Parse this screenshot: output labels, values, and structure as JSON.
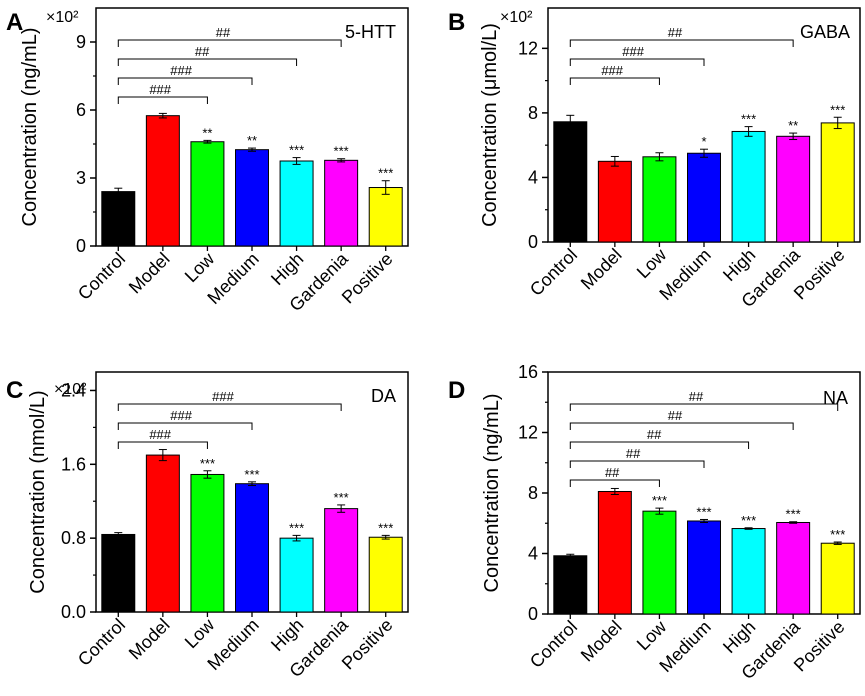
{
  "chart_data": [
    {
      "type": "bar",
      "letter": "A",
      "analyte": "5-HTT",
      "ylabel": "Concentration (ng/mL)",
      "sci_label": "×10²",
      "ylim": [
        0,
        10.5
      ],
      "yticks": [
        0,
        3,
        6,
        9
      ],
      "categories": [
        "Control",
        "Model",
        "Low",
        "Medium",
        "High",
        "Gardenia",
        "Positive"
      ],
      "values": [
        2.4,
        5.75,
        4.6,
        4.25,
        3.75,
        3.78,
        2.58
      ],
      "errors": [
        0.15,
        0.1,
        0.06,
        0.07,
        0.15,
        0.07,
        0.3
      ],
      "significance": [
        "",
        "",
        "**",
        "**",
        "***",
        "***",
        "***"
      ],
      "comparisons": [
        {
          "from": 0,
          "to": 2,
          "label": "###"
        },
        {
          "from": 0,
          "to": 3,
          "label": "###"
        },
        {
          "from": 0,
          "to": 4,
          "label": "##"
        },
        {
          "from": 0,
          "to": 5,
          "label": "##"
        }
      ]
    },
    {
      "type": "bar",
      "letter": "B",
      "analyte": "GABA",
      "ylabel": "Concentration (μmol/L)",
      "sci_label": "×10²",
      "ylim": [
        0,
        14.5
      ],
      "yticks": [
        0,
        4,
        8,
        12
      ],
      "categories": [
        "Control",
        "Model",
        "Low",
        "Medium",
        "High",
        "Gardenia",
        "Positive"
      ],
      "values": [
        7.45,
        5.0,
        5.28,
        5.5,
        6.85,
        6.55,
        7.38
      ],
      "errors": [
        0.4,
        0.3,
        0.25,
        0.25,
        0.3,
        0.2,
        0.35
      ],
      "significance": [
        "",
        "",
        "",
        "*",
        "***",
        "**",
        "***"
      ],
      "comparisons": [
        {
          "from": 0,
          "to": 2,
          "label": "###"
        },
        {
          "from": 0,
          "to": 3,
          "label": "###"
        },
        {
          "from": 0,
          "to": 5,
          "label": "##"
        }
      ]
    },
    {
      "type": "bar",
      "letter": "C",
      "analyte": "DA",
      "ylabel": "Concentration (nmol/L)",
      "sci_label": "×10²",
      "ylim": [
        0,
        2.6
      ],
      "yticks": [
        0.0,
        0.8,
        1.6,
        2.4
      ],
      "tick_format": "fixed1",
      "categories": [
        "Control",
        "Model",
        "Low",
        "Medium",
        "High",
        "Gardenia",
        "Positive"
      ],
      "values": [
        0.84,
        1.7,
        1.49,
        1.39,
        0.8,
        1.12,
        0.81
      ],
      "errors": [
        0.02,
        0.06,
        0.04,
        0.02,
        0.03,
        0.04,
        0.02
      ],
      "significance": [
        "",
        "",
        "***",
        "***",
        "***",
        "***",
        "***"
      ],
      "comparisons": [
        {
          "from": 0,
          "to": 2,
          "label": "###"
        },
        {
          "from": 0,
          "to": 3,
          "label": "###"
        },
        {
          "from": 0,
          "to": 5,
          "label": "###"
        }
      ]
    },
    {
      "type": "bar",
      "letter": "D",
      "analyte": "NA",
      "ylabel": "Concentration  (ng/mL)",
      "sci_label": "",
      "ylim": [
        0,
        16
      ],
      "yticks": [
        0,
        4,
        8,
        12,
        16
      ],
      "categories": [
        "Control",
        "Model",
        "Low",
        "Medium",
        "High",
        "Gardenia",
        "Positive"
      ],
      "values": [
        3.85,
        8.1,
        6.8,
        6.15,
        5.65,
        6.05,
        4.68
      ],
      "errors": [
        0.1,
        0.2,
        0.2,
        0.1,
        0.05,
        0.05,
        0.08
      ],
      "significance": [
        "",
        "",
        "***",
        "***",
        "***",
        "***",
        "***"
      ],
      "comparisons": [
        {
          "from": 0,
          "to": 2,
          "label": "##"
        },
        {
          "from": 0,
          "to": 3,
          "label": "##"
        },
        {
          "from": 0,
          "to": 4,
          "label": "##"
        },
        {
          "from": 0,
          "to": 5,
          "label": "##"
        },
        {
          "from": 0,
          "to": 6,
          "label": "##"
        }
      ]
    }
  ],
  "colors": {
    "bars": [
      "#000000",
      "#ff0000",
      "#00ff00",
      "#0000ff",
      "#00ffff",
      "#ff00ff",
      "#ffff00"
    ]
  }
}
